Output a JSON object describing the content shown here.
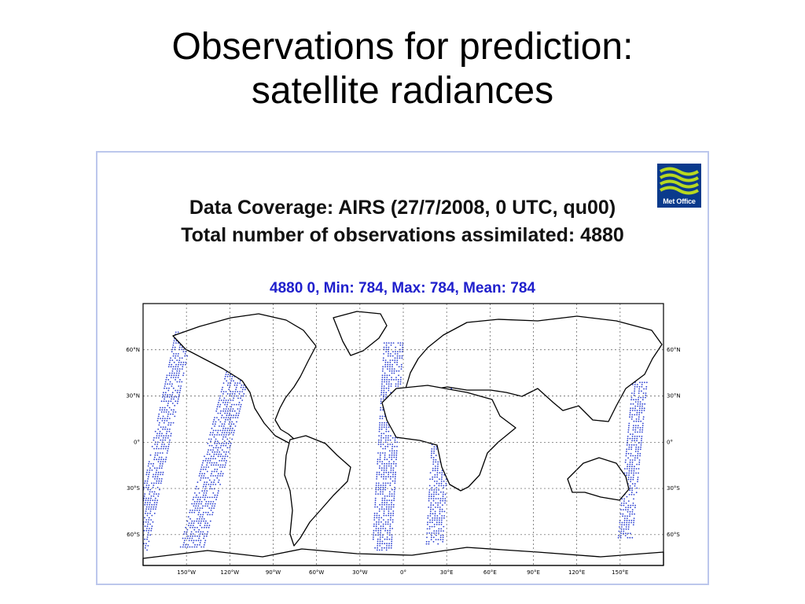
{
  "slide": {
    "title_line1": "Observations for prediction:",
    "title_line2": "satellite radiances"
  },
  "figure": {
    "logo_text": "Met Office",
    "header_line1": "Data Coverage: AIRS  (27/7/2008, 0 UTC, qu00)",
    "header_line2": "Total number of observations assimilated: 4880",
    "stats_line": "4880 0,  Min: 784,  Max: 784,  Mean: 784",
    "map": {
      "projection": "equirectangular",
      "lon_range": [
        -180,
        180
      ],
      "lat_range": [
        -80,
        90
      ],
      "lon_grid": [
        -150,
        -120,
        -90,
        -60,
        -30,
        0,
        30,
        60,
        90,
        120,
        150
      ],
      "lat_grid": [
        60,
        30,
        0,
        -30,
        -60
      ],
      "lon_labels": [
        "150°W",
        "120°W",
        "90°W",
        "60°W",
        "30°W",
        "0°",
        "30°E",
        "60°E",
        "90°E",
        "120°E",
        "150°E"
      ],
      "lat_labels": [
        "60°N",
        "30°N",
        "0°",
        "30°S",
        "60°S"
      ],
      "observation_color": "#2a3fd0",
      "coastline_color": "#000000"
    }
  }
}
